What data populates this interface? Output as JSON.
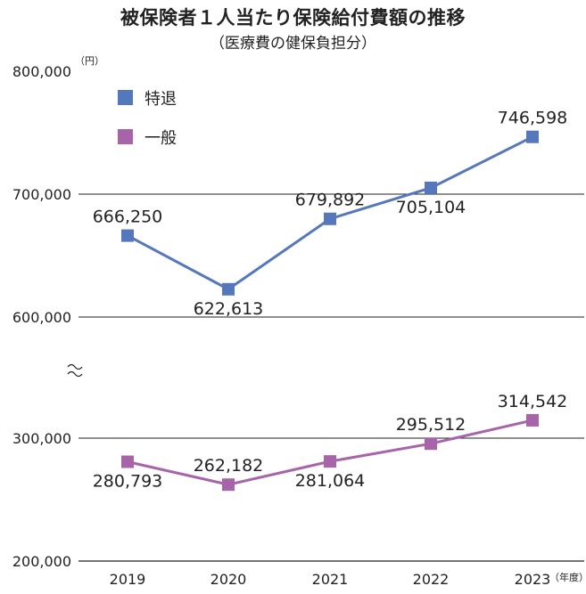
{
  "title": "被保険者１人当たり保険給付費額の推移",
  "subtitle": "（医療費の健保負担分）",
  "y_unit": "（円）",
  "x_unit": "（年度）",
  "colors": {
    "tokutai": "#5577bb",
    "ippan": "#a864a8",
    "grid": "#222222"
  },
  "chart_data": {
    "type": "line",
    "title": "被保険者１人当たり保険給付費額の推移",
    "subtitle": "（医療費の健保負担分）",
    "categories": [
      "2019",
      "2020",
      "2021",
      "2022",
      "2023"
    ],
    "y_ticks": [
      "800,000",
      "700,000",
      "600,000",
      "300,000",
      "200,000"
    ],
    "y_break": "600,000〜300,000 (axis break ≈)",
    "series": [
      {
        "name": "特退",
        "values": [
          666250,
          622613,
          679892,
          705104,
          746598
        ],
        "labels": [
          "666,250",
          "622,613",
          "679,892",
          "705,104",
          "746,598"
        ]
      },
      {
        "name": "一般",
        "values": [
          280793,
          262182,
          281064,
          295512,
          314542
        ],
        "labels": [
          "280,793",
          "262,182",
          "281,064",
          "295,512",
          "314,542"
        ]
      }
    ],
    "legend": "top-left",
    "grid": true
  }
}
